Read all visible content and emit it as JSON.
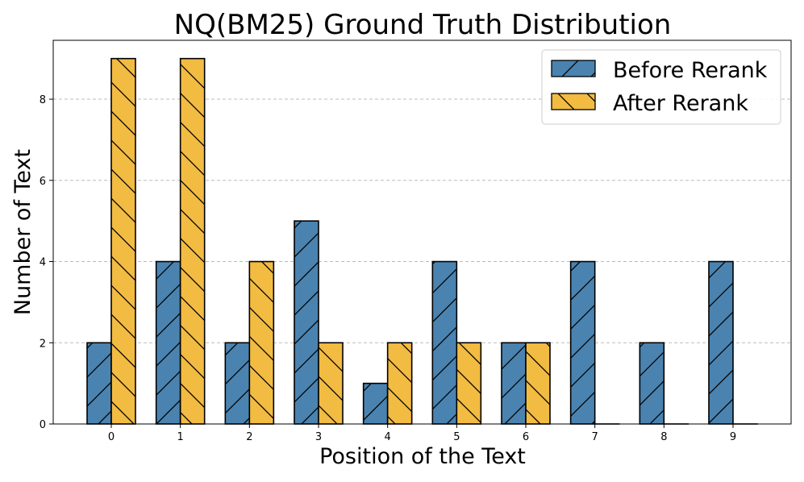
{
  "chart_data": {
    "type": "bar",
    "title": "NQ(BM25) Ground Truth Distribution",
    "xlabel": "Position of the Text",
    "ylabel": "Number of Text",
    "categories": [
      "0",
      "1",
      "2",
      "3",
      "4",
      "5",
      "6",
      "7",
      "8",
      "9"
    ],
    "series": [
      {
        "name": "Before Rerank",
        "values": [
          2,
          4,
          2,
          5,
          1,
          4,
          2,
          4,
          2,
          4
        ],
        "color": "#4a83b0",
        "hatch": "/"
      },
      {
        "name": "After Rerank",
        "values": [
          9,
          9,
          4,
          2,
          2,
          2,
          2,
          0,
          0,
          0
        ],
        "color": "#f2bb42",
        "hatch": "\\"
      }
    ],
    "yticks": [
      "0",
      "2",
      "4",
      "6",
      "8"
    ],
    "ylim": [
      0,
      9.45
    ],
    "grid": "y-dashed",
    "legend": "top-right"
  }
}
